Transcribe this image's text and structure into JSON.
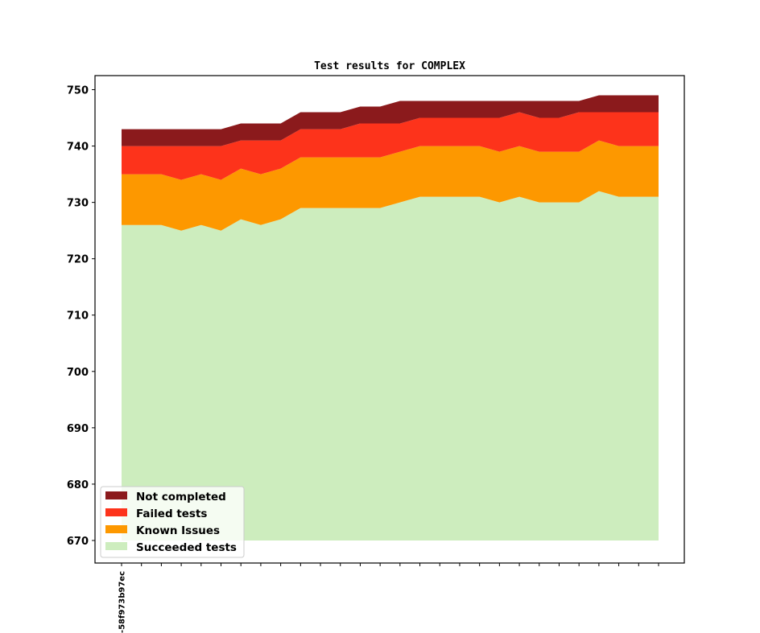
{
  "chart_data": {
    "type": "area",
    "stacked": true,
    "title": "Test results for COMPLEX",
    "xlabel": "",
    "ylabel": "",
    "ylim": [
      666,
      752.5
    ],
    "baseline": 670,
    "yticks": [
      670,
      680,
      690,
      700,
      710,
      720,
      730,
      740,
      750
    ],
    "xtick_labels": [
      "-58f973b97ec",
      "",
      "",
      "",
      "",
      "",
      "",
      "",
      "",
      "",
      "",
      "",
      "",
      "",
      "",
      "",
      "",
      "",
      "",
      "",
      "",
      "",
      "",
      "",
      "",
      "",
      "",
      ""
    ],
    "n_points": 28,
    "legend_position": "lower-left",
    "series": [
      {
        "name": "Succeeded tests",
        "color": "#cdedbe",
        "top": [
          726,
          726,
          726,
          725,
          726,
          725,
          727,
          726,
          727,
          729,
          729,
          729,
          729,
          729,
          730,
          731,
          731,
          731,
          731,
          730,
          731,
          730,
          730,
          730,
          732,
          731,
          731,
          731
        ]
      },
      {
        "name": "Known Issues",
        "color": "#fd9800",
        "top": [
          735,
          735,
          735,
          734,
          735,
          734,
          736,
          735,
          736,
          738,
          738,
          738,
          738,
          738,
          739,
          740,
          740,
          740,
          740,
          739,
          740,
          739,
          739,
          739,
          741,
          740,
          740,
          740
        ]
      },
      {
        "name": "Failed tests",
        "color": "#fd331b",
        "top": [
          740,
          740,
          740,
          740,
          740,
          740,
          741,
          741,
          741,
          743,
          743,
          743,
          744,
          744,
          744,
          745,
          745,
          745,
          745,
          745,
          746,
          745,
          745,
          746,
          746,
          746,
          746,
          746
        ]
      },
      {
        "name": "Not completed",
        "color": "#8b1a1c",
        "top": [
          743,
          743,
          743,
          743,
          743,
          743,
          744,
          744,
          744,
          746,
          746,
          746,
          747,
          747,
          748,
          748,
          748,
          748,
          748,
          748,
          748,
          748,
          748,
          748,
          749,
          749,
          749,
          749
        ]
      }
    ],
    "legend": [
      "Not completed",
      "Failed tests",
      "Known Issues",
      "Succeeded tests"
    ]
  }
}
